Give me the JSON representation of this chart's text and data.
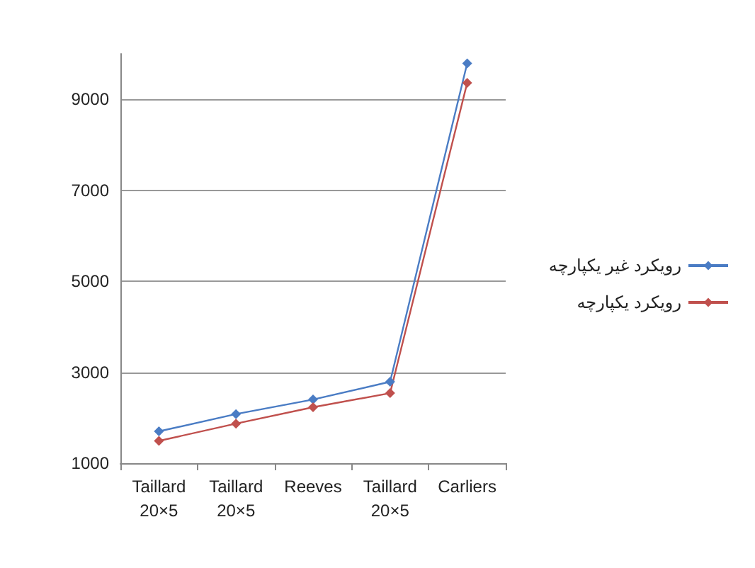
{
  "chart_data": {
    "type": "line",
    "categories": [
      "Taillard\n20×5",
      "Taillard\n20×5",
      "Reeves",
      "Taillard\n20×5",
      "Carliers"
    ],
    "series": [
      {
        "name": "رویکرد غیر یکپارچه",
        "color": "#4a7cc4",
        "values": [
          1700,
          2080,
          2400,
          2790,
          9790
        ]
      },
      {
        "name": "رویکرد یکپارچه",
        "color": "#c0504d",
        "values": [
          1490,
          1870,
          2230,
          2540,
          9360
        ]
      }
    ],
    "ylim": [
      1000,
      10000
    ],
    "yticks": [
      1000,
      3000,
      5000,
      7000,
      9000
    ],
    "grid": "y",
    "legend": "right",
    "marker": "diamond",
    "line_style": "solid"
  }
}
